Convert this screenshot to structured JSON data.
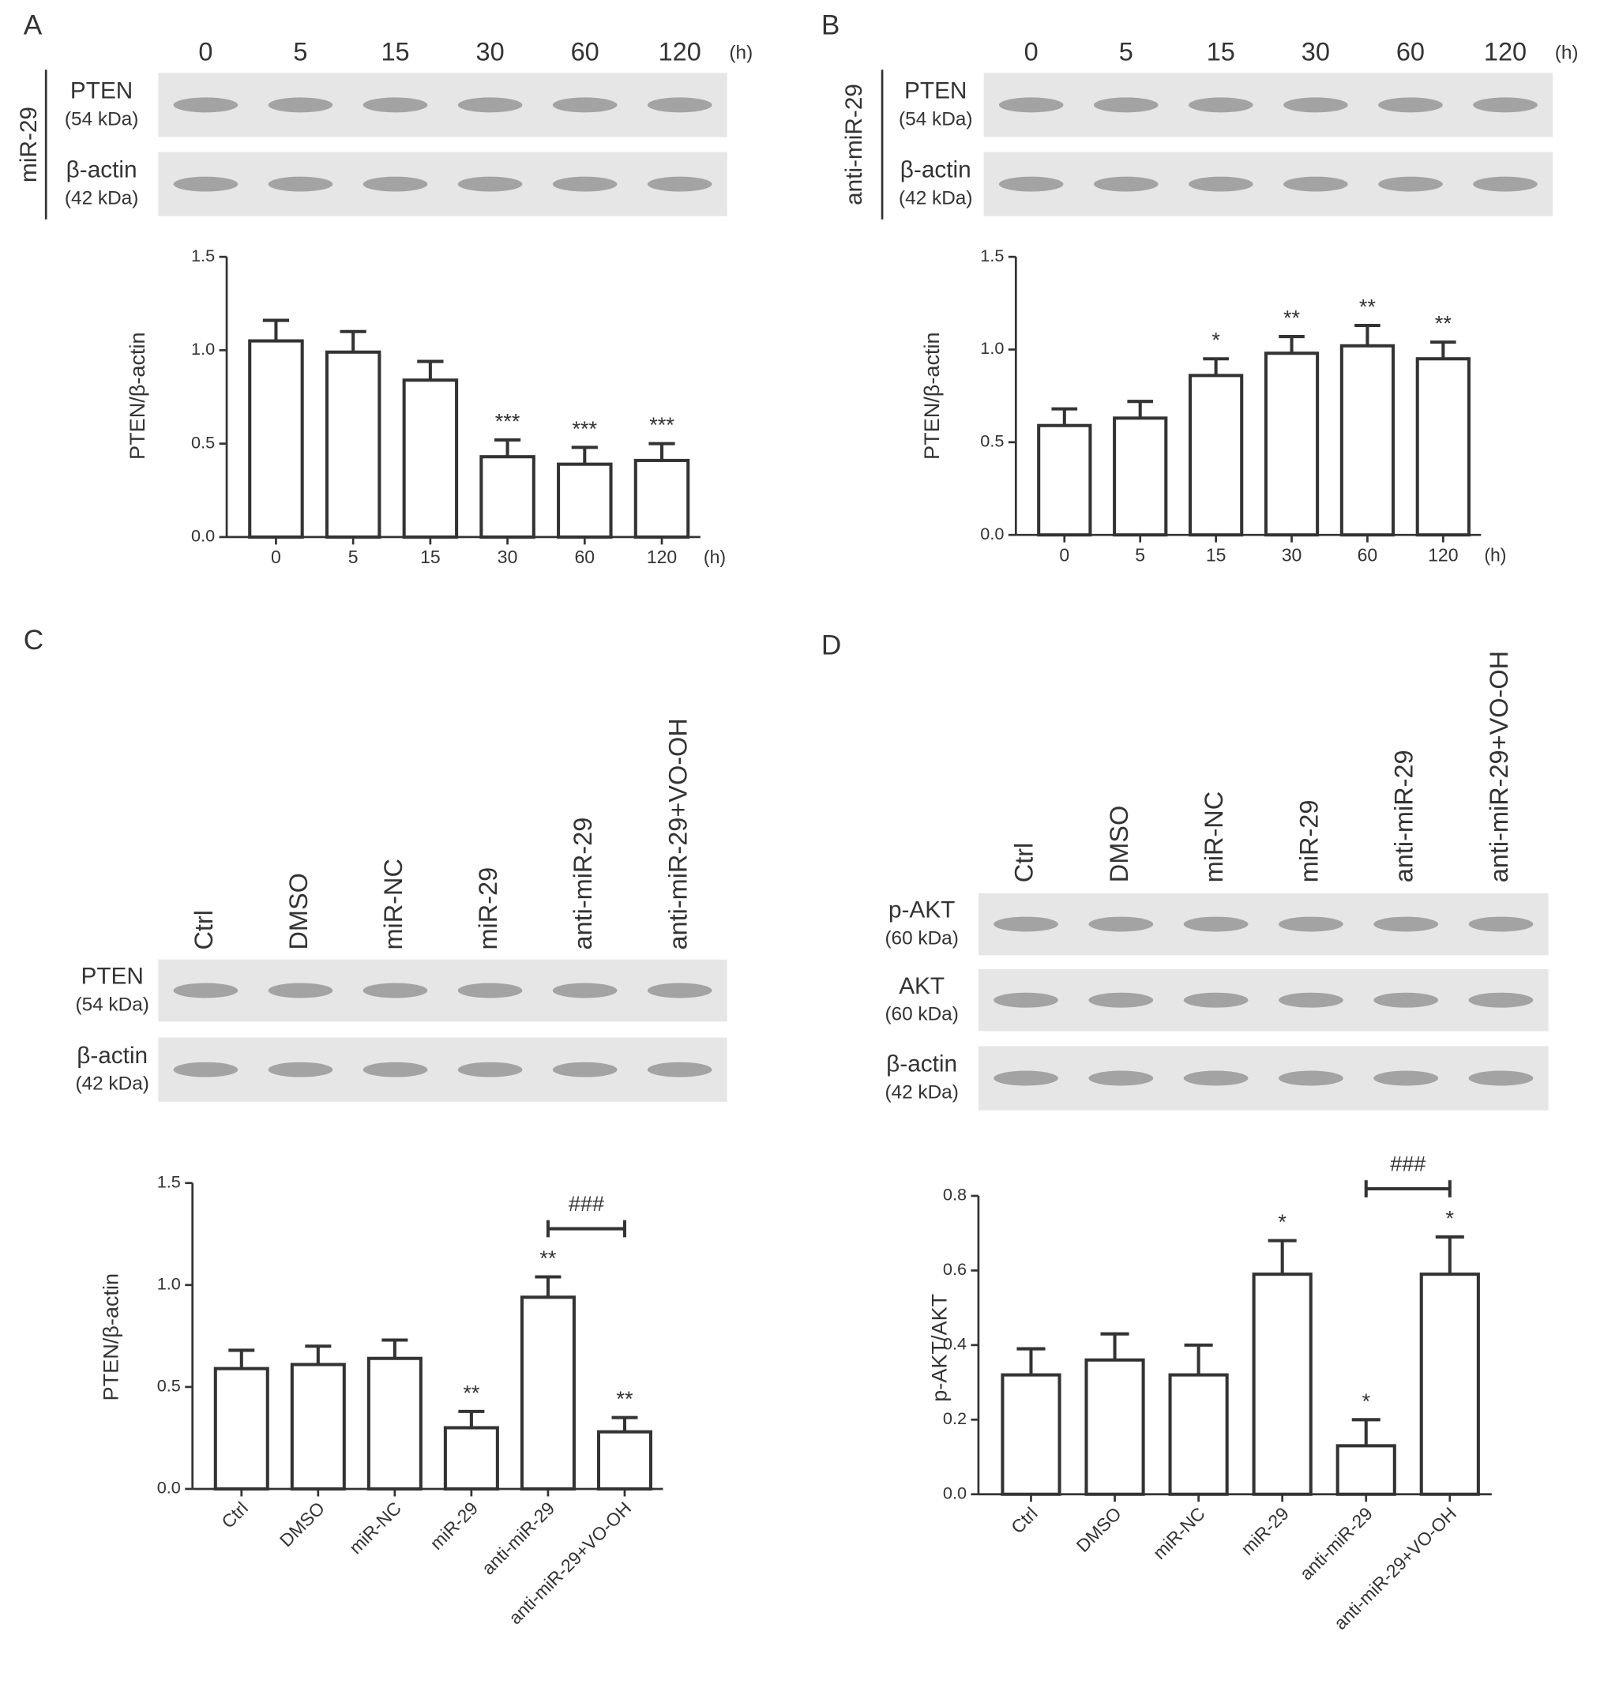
{
  "chart_data": [
    {
      "type": "bar",
      "panel": "A",
      "ylabel": "PTEN/β-actin",
      "categories": [
        "0",
        "5",
        "15",
        "30",
        "60",
        "120"
      ],
      "x_unit": "(h)",
      "values": [
        1.05,
        0.99,
        0.84,
        0.43,
        0.39,
        0.41
      ],
      "errors": [
        0.11,
        0.11,
        0.1,
        0.09,
        0.09,
        0.09
      ],
      "annotations": [
        null,
        null,
        null,
        "***",
        "***",
        "***"
      ],
      "ylim": [
        0,
        1.5
      ],
      "yticks": [
        {
          "value": 0,
          "label": "0.0"
        },
        0.5,
        {
          "value": 1,
          "label": "1.0"
        },
        1.5
      ],
      "blot": {
        "group": "miR-29",
        "lanes": [
          "0",
          "5",
          "15",
          "30",
          "60",
          "120"
        ],
        "lane_unit": "(h)",
        "rows": [
          {
            "protein": "PTEN",
            "size": "(54 kDa)"
          },
          {
            "protein": "β-actin",
            "size": "(42 kDa)"
          }
        ]
      }
    },
    {
      "type": "bar",
      "panel": "B",
      "ylabel": "PTEN/β-actin",
      "categories": [
        "0",
        "5",
        "15",
        "30",
        "60",
        "120"
      ],
      "x_unit": "(h)",
      "values": [
        0.59,
        0.63,
        0.86,
        0.98,
        1.02,
        0.95
      ],
      "errors": [
        0.09,
        0.09,
        0.09,
        0.09,
        0.11,
        0.09
      ],
      "annotations": [
        null,
        null,
        "*",
        "**",
        "**",
        "**"
      ],
      "ylim": [
        0,
        1.5
      ],
      "yticks": [
        {
          "value": 0,
          "label": "0.0"
        },
        0.5,
        {
          "value": 1,
          "label": "1.0"
        },
        1.5
      ],
      "blot": {
        "group": "anti-miR-29",
        "lanes": [
          "0",
          "5",
          "15",
          "30",
          "60",
          "120"
        ],
        "lane_unit": "(h)",
        "rows": [
          {
            "protein": "PTEN",
            "size": "(54 kDa)"
          },
          {
            "protein": "β-actin",
            "size": "(42 kDa)"
          }
        ]
      }
    },
    {
      "type": "bar",
      "panel": "C",
      "ylabel": "PTEN/β-actin",
      "categories": [
        "Ctrl",
        "DMSO",
        "miR-NC",
        "miR-29",
        "anti-miR-29",
        "anti-miR-29+VO-OH"
      ],
      "values": [
        0.59,
        0.61,
        0.64,
        0.3,
        0.94,
        0.28
      ],
      "errors": [
        0.09,
        0.09,
        0.09,
        0.08,
        0.1,
        0.07
      ],
      "annotations": [
        null,
        null,
        null,
        "**",
        "**",
        "**"
      ],
      "bracket": {
        "label": "###",
        "from": 4,
        "to": 5
      },
      "ylim": [
        0,
        1.5
      ],
      "yticks": [
        {
          "value": 0,
          "label": "0.0"
        },
        0.5,
        {
          "value": 1,
          "label": "1.0"
        },
        1.5
      ],
      "blot": {
        "lanes": [
          "Ctrl",
          "DMSO",
          "miR-NC",
          "miR-29",
          "anti-miR-29",
          "anti-miR-29+VO-OH"
        ],
        "rows": [
          {
            "protein": "PTEN",
            "size": "(54 kDa)"
          },
          {
            "protein": "β-actin",
            "size": "(42 kDa)"
          }
        ]
      }
    },
    {
      "type": "bar",
      "panel": "D",
      "ylabel": "p-AKT/AKT",
      "categories": [
        "Ctrl",
        "DMSO",
        "miR-NC",
        "miR-29",
        "anti-miR-29",
        "anti-miR-29+VO-OH"
      ],
      "values": [
        0.32,
        0.36,
        0.32,
        0.59,
        0.13,
        0.59
      ],
      "errors": [
        0.07,
        0.07,
        0.08,
        0.09,
        0.07,
        0.1
      ],
      "annotations": [
        null,
        null,
        null,
        "*",
        "*",
        "*"
      ],
      "bracket": {
        "label": "###",
        "from": 4,
        "to": 5
      },
      "ylim": [
        0,
        0.8
      ],
      "yticks": [
        {
          "value": 0,
          "label": "0.0"
        },
        0.2,
        0.4,
        0.6,
        0.8
      ],
      "blot": {
        "lanes": [
          "Ctrl",
          "DMSO",
          "miR-NC",
          "miR-29",
          "anti-miR-29",
          "anti-miR-29+VO-OH"
        ],
        "rows": [
          {
            "protein": "p-AKT",
            "size": "(60 kDa)"
          },
          {
            "protein": "AKT",
            "size": "(60 kDa)"
          },
          {
            "protein": "β-actin",
            "size": "(42 kDa)"
          }
        ]
      }
    }
  ]
}
